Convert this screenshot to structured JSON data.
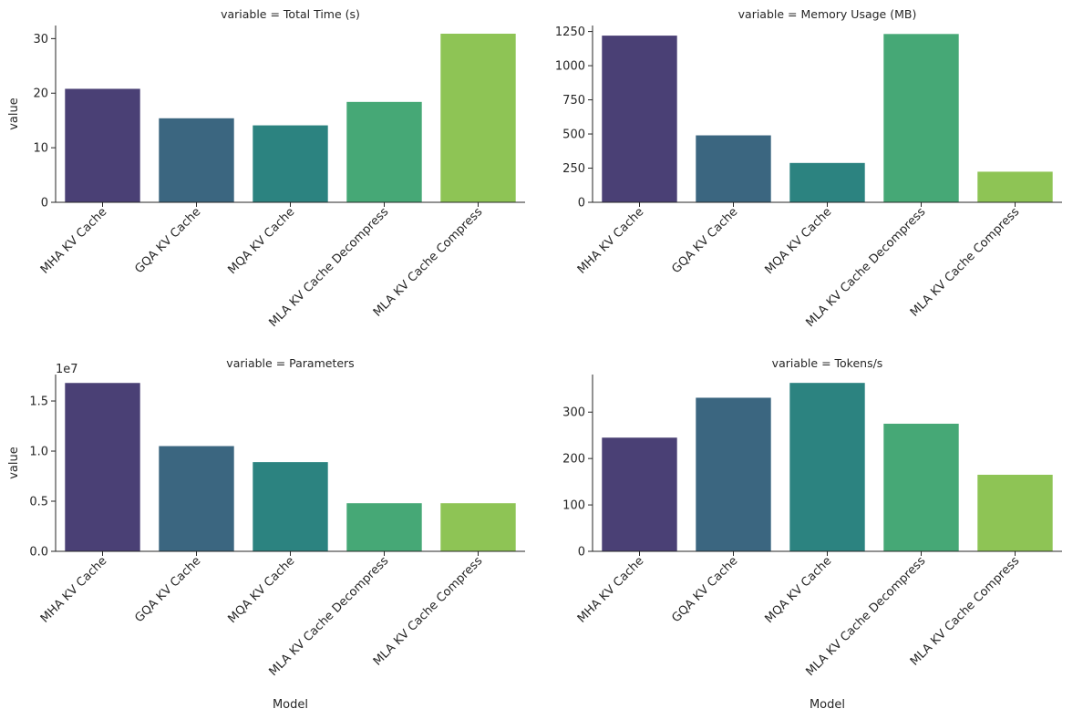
{
  "chart_data": [
    {
      "type": "bar",
      "title": "variable = Total Time (s)",
      "xlabel": "",
      "ylabel": "value",
      "categories": [
        "MHA KV Cache",
        "GQA KV Cache",
        "MQA KV Cache",
        "MLA KV Cache Decompress",
        "MLA KV Cache Compress"
      ],
      "values": [
        20.8,
        15.4,
        14.1,
        18.4,
        30.9
      ],
      "ylim": [
        0,
        32.4
      ],
      "yticks": [
        0,
        10,
        20,
        30
      ],
      "ytick_labels": [
        "0",
        "10",
        "20",
        "30"
      ],
      "offset_label": "",
      "grid": false
    },
    {
      "type": "bar",
      "title": "variable = Memory Usage (MB)",
      "xlabel": "",
      "ylabel": "",
      "categories": [
        "MHA KV Cache",
        "GQA KV Cache",
        "MQA KV Cache",
        "MLA KV Cache Decompress",
        "MLA KV Cache Compress"
      ],
      "values": [
        1220,
        490,
        288,
        1232,
        224
      ],
      "ylim": [
        0,
        1294
      ],
      "yticks": [
        0,
        250,
        500,
        750,
        1000,
        1250
      ],
      "ytick_labels": [
        "0",
        "250",
        "500",
        "750",
        "1000",
        "1250"
      ],
      "offset_label": "",
      "grid": false
    },
    {
      "type": "bar",
      "title": "variable = Parameters",
      "xlabel": "Model",
      "ylabel": "value",
      "categories": [
        "MHA KV Cache",
        "GQA KV Cache",
        "MQA KV Cache",
        "MLA KV Cache Decompress",
        "MLA KV Cache Compress"
      ],
      "values": [
        16800000,
        10500000,
        8900000,
        4800000,
        4800000
      ],
      "ylim": [
        0,
        17640000
      ],
      "yticks": [
        0,
        5000000,
        10000000,
        15000000
      ],
      "ytick_labels": [
        "0.0",
        "0.5",
        "1.0",
        "1.5"
      ],
      "offset_label": "1e7",
      "grid": false
    },
    {
      "type": "bar",
      "title": "variable = Tokens/s",
      "xlabel": "Model",
      "ylabel": "",
      "categories": [
        "MHA KV Cache",
        "GQA KV Cache",
        "MQA KV Cache",
        "MLA KV Cache Decompress",
        "MLA KV Cache Compress"
      ],
      "values": [
        245,
        331,
        363,
        275,
        165
      ],
      "ylim": [
        0,
        381
      ],
      "yticks": [
        0,
        100,
        200,
        300
      ],
      "ytick_labels": [
        "0",
        "100",
        "200",
        "300"
      ],
      "offset_label": "",
      "grid": false
    }
  ],
  "colors": [
    "#4a4075",
    "#3b6680",
    "#2c8380",
    "#46a876",
    "#8ec455"
  ]
}
